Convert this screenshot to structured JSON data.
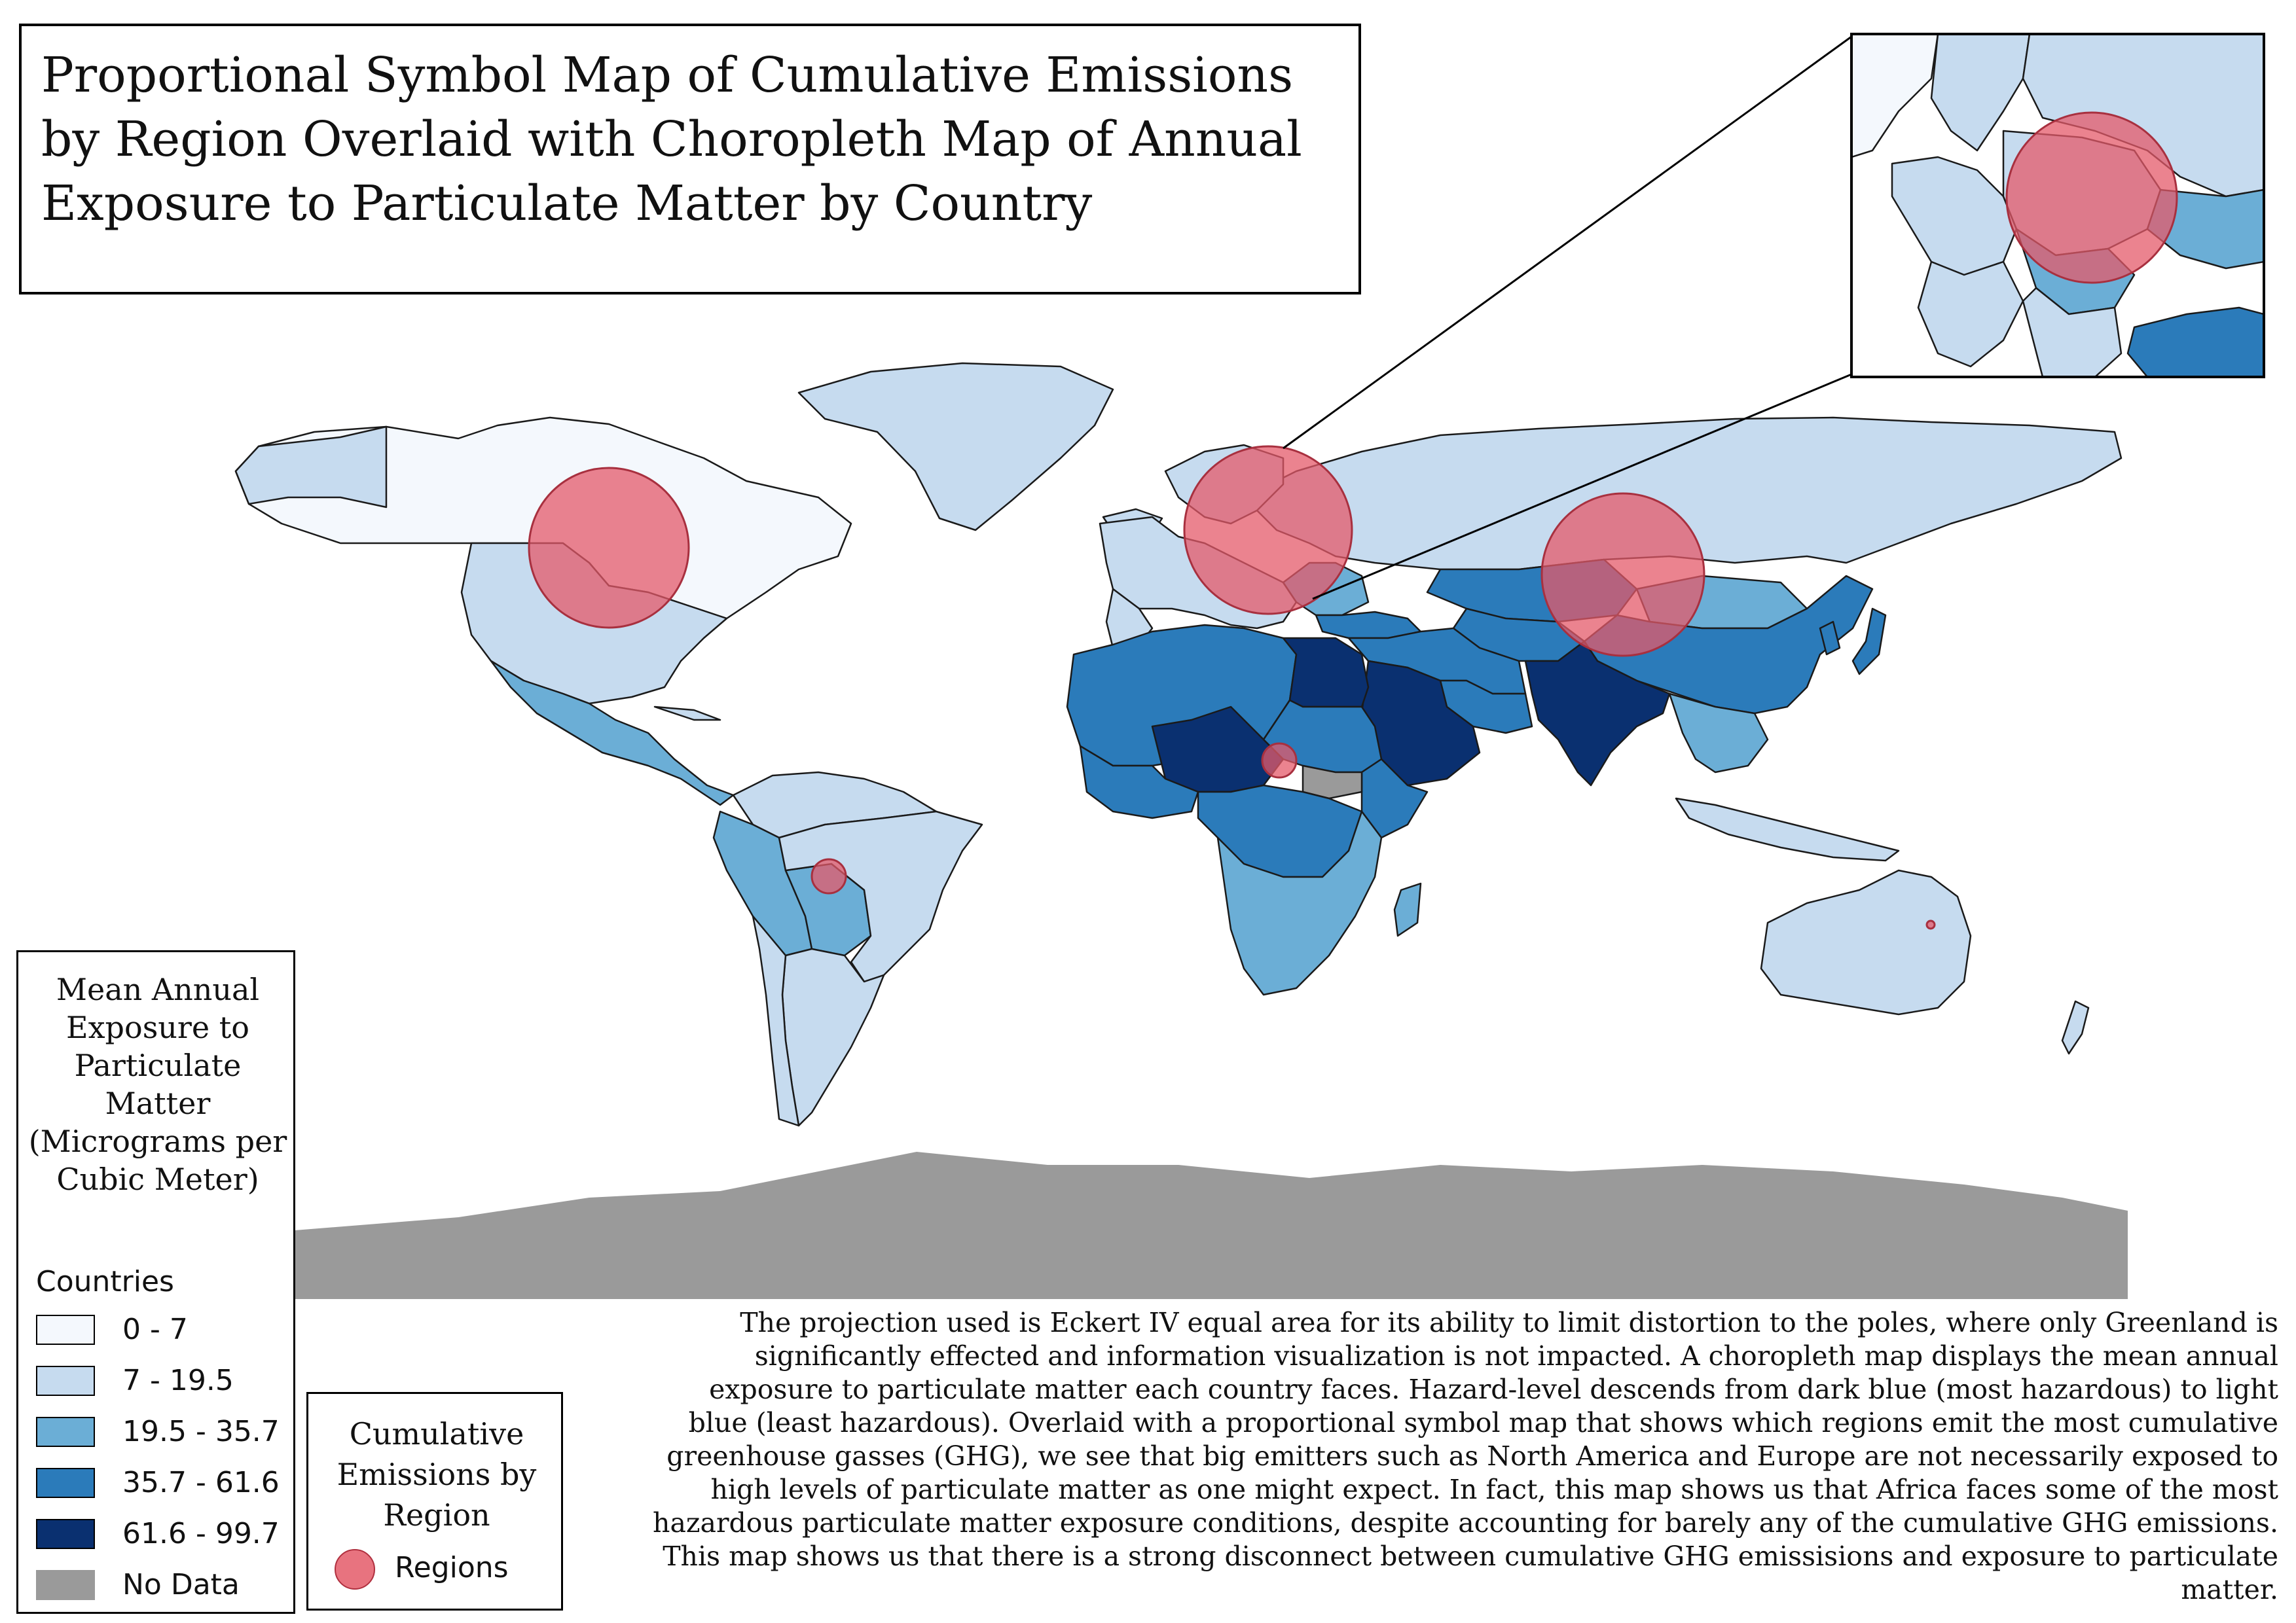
{
  "title": "Proportional Symbol Map of Cumulative Emissions by Region Overlaid with Choropleth Map of Annual Exposure to Particulate Matter by Country",
  "choropleth_legend": {
    "title": "Mean Annual Exposure to Particulate Matter (Micrograms per Cubic Meter)",
    "subtitle": "Countries",
    "classes": [
      {
        "label": "0 - 7",
        "color": "#f4f8fd"
      },
      {
        "label": "7 - 19.5",
        "color": "#c6dbef"
      },
      {
        "label": "19.5 - 35.7",
        "color": "#6baed6"
      },
      {
        "label": "35.7 - 61.6",
        "color": "#2b7bba"
      },
      {
        "label": "61.6 - 99.7",
        "color": "#0a3070"
      },
      {
        "label": "No Data",
        "color": "#9a9a9a"
      }
    ]
  },
  "symbol_legend": {
    "title": "Cumulative Emissions by Region",
    "label": "Regions",
    "color": "#e45a69"
  },
  "description": "The projection used is Eckert IV equal area for its ability to limit distortion to the poles,  where only Greenland is significantly effected and information visualization is not impacted. A choropleth map displays the mean annual exposure to particulate matter each country faces. Hazard-level descends from dark blue (most hazardous) to light blue (least hazardous). Overlaid with a proportional symbol map that shows which regions emit the most cumulative greenhouse gasses (GHG), we see that big emitters such as North America and Europe are not necessarily exposed to high levels of particulate matter as one might expect. In fact, this map shows us that Africa faces some of the most hazardous particulate matter exposure conditions, despite accounting for barely any of the cumulative GHG emissions. This map shows us that there is a strong disconnect between cumulative GHG emissisions and exposure to particulate matter.",
  "description_lines": [
    "The projection used is Eckert IV equal area for its ability to limit distortion to the poles,  where only Greenland is",
    "significantly effected and information visualization is not impacted. A choropleth map displays the mean annual",
    "exposure to particulate matter each country faces. Hazard-level descends from dark blue (most hazardous) to light",
    "blue (least hazardous). Overlaid with a proportional symbol map that shows which regions emit the most cumulative",
    "greenhouse gasses (GHG), we see that big emitters such as North America and Europe are not necessarily exposed to",
    "high levels of particulate matter as one might expect. In fact, this map shows us that Africa faces some of the most",
    "hazardous particulate matter exposure conditions, despite accounting for barely any of the cumulative GHG emissions.",
    "This map shows us that there is a strong disconnect between cumulative GHG emissisions and exposure to particulate",
    "matter."
  ],
  "colors": {
    "class_0_7": "#f4f8fd",
    "class_7_19_5": "#c6dbef",
    "class_19_5_35_7": "#6baed6",
    "class_35_7_61_6": "#2b7bba",
    "class_61_6_99_7": "#0a3070",
    "no_data": "#9a9a9a",
    "symbol": "#e45a69"
  }
}
